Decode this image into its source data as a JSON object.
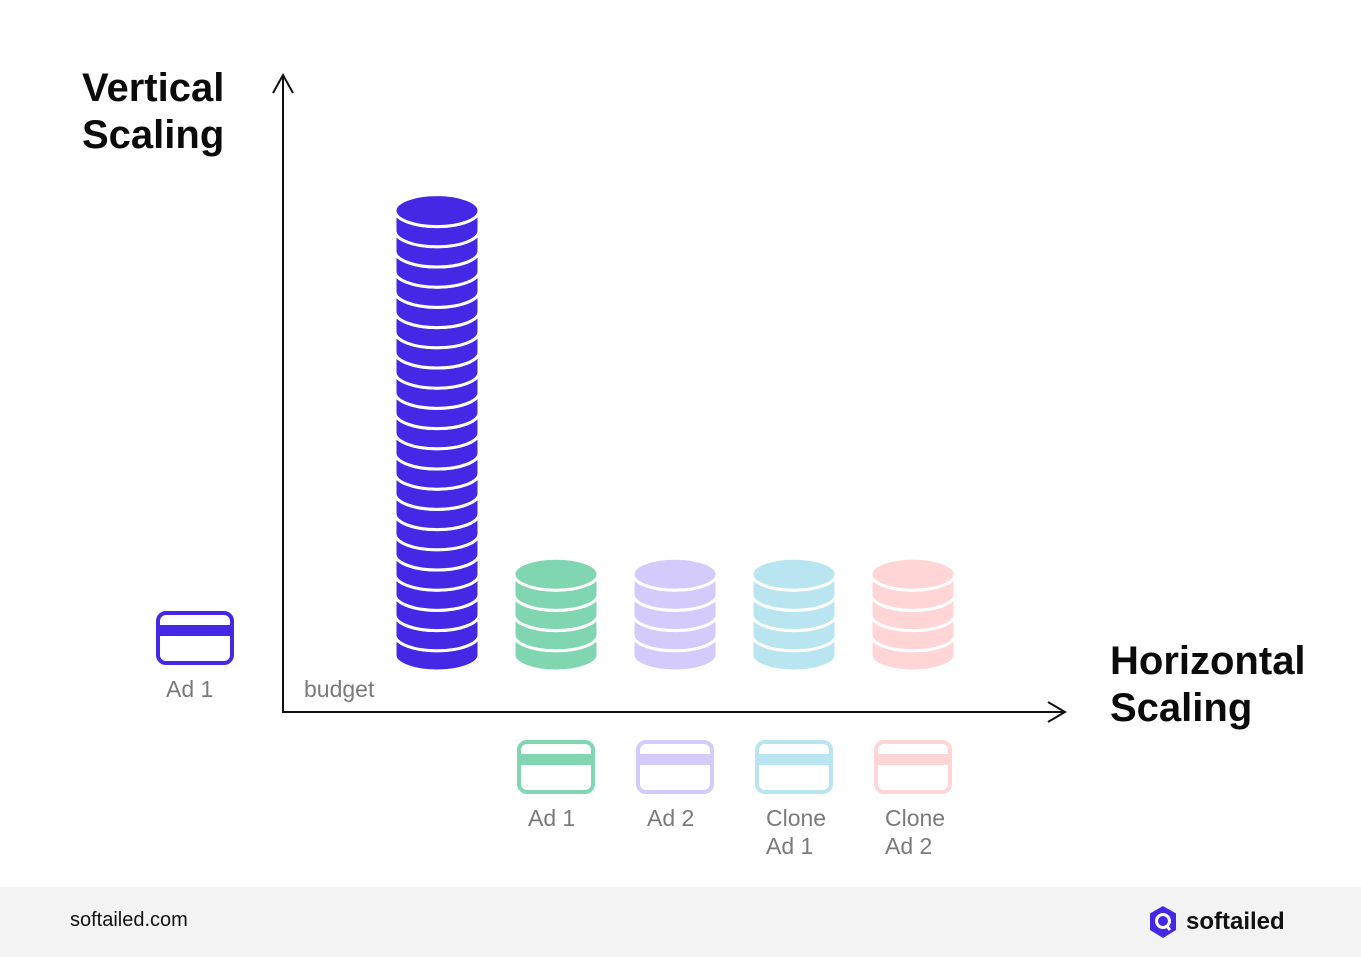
{
  "titles": {
    "vertical": [
      "Vertical",
      "Scaling"
    ],
    "horizontal": [
      "Horizontal",
      "Scaling"
    ]
  },
  "axis_label": "budget",
  "colors": {
    "blue": "#4428e6",
    "green": "#7fd6b0",
    "purple": "#d4cbfc",
    "cyan": "#b8e5f0",
    "pink": "#ffd5d6",
    "axis": "#111111"
  },
  "vertical_item": {
    "label": [
      "Ad 1"
    ],
    "color": "#4428e6",
    "coins": 22,
    "icon": "credit-card-icon"
  },
  "horizontal_items": [
    {
      "label": [
        "Ad 1"
      ],
      "color": "#7fd6b0",
      "coins": 4,
      "icon": "credit-card-icon"
    },
    {
      "label": [
        "Ad 2"
      ],
      "color": "#d4cbfc",
      "coins": 4,
      "icon": "credit-card-icon"
    },
    {
      "label": [
        "Clone",
        "Ad 1"
      ],
      "color": "#b8e5f0",
      "coins": 4,
      "icon": "credit-card-icon"
    },
    {
      "label": [
        "Clone",
        "Ad 2"
      ],
      "color": "#ffd5d6",
      "coins": 4,
      "icon": "credit-card-icon"
    }
  ],
  "footer": {
    "site": "softailed.com",
    "brand": "softailed",
    "brand_icon": "softailed-logo-icon"
  }
}
